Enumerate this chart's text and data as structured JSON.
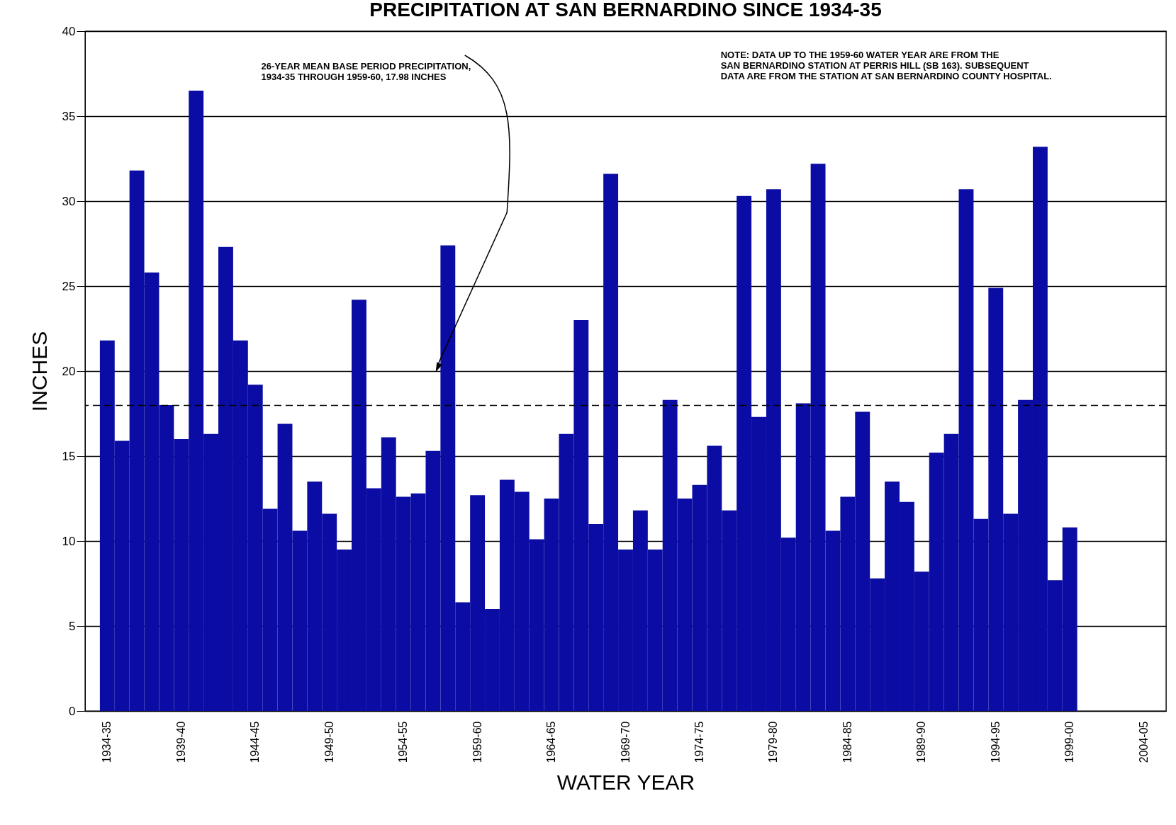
{
  "chart_data": {
    "type": "bar",
    "title": "PRECIPITATION AT SAN BERNARDINO SINCE 1934-35",
    "xlabel": "WATER YEAR",
    "ylabel": "INCHES",
    "categories": [
      "1934-35",
      null,
      null,
      null,
      null,
      "1939-40",
      null,
      null,
      null,
      null,
      "1944-45",
      null,
      null,
      null,
      null,
      "1949-50",
      null,
      null,
      null,
      null,
      "1954-55",
      null,
      null,
      null,
      null,
      "1959-60",
      null,
      null,
      null,
      null,
      "1964-65",
      null,
      null,
      null,
      null,
      "1969-70",
      null,
      null,
      null,
      null,
      "1974-75",
      null,
      null,
      null,
      null,
      "1979-80",
      null,
      null,
      null,
      null,
      "1984-85",
      null,
      null,
      null,
      null,
      "1989-90",
      null,
      null,
      null,
      null,
      "1994-95",
      null,
      null,
      null,
      null,
      "1999-00",
      null,
      null,
      null,
      null,
      "2004-05"
    ],
    "values": [
      21.8,
      15.9,
      31.8,
      25.8,
      18.0,
      16.0,
      36.5,
      16.3,
      27.3,
      21.8,
      19.2,
      11.9,
      16.9,
      10.6,
      13.5,
      11.6,
      9.5,
      24.2,
      13.1,
      16.1,
      12.6,
      12.8,
      15.3,
      27.4,
      6.4,
      12.7,
      6.0,
      13.6,
      12.9,
      10.1,
      12.5,
      16.3,
      23.0,
      11.0,
      31.6,
      9.5,
      11.8,
      9.5,
      18.3,
      12.5,
      13.3,
      15.6,
      11.8,
      30.3,
      17.3,
      30.7,
      10.2,
      18.1,
      32.2,
      10.6,
      12.6,
      17.6,
      7.8,
      13.5,
      12.3,
      8.2,
      15.2,
      16.3,
      30.7,
      11.3,
      24.9,
      11.6,
      18.3,
      33.2,
      7.7,
      10.8,
      null,
      null,
      null,
      null,
      null
    ],
    "color": "#0b0ca3",
    "ylim": [
      0,
      40
    ],
    "yticks": [
      0,
      5,
      10,
      15,
      20,
      25,
      30,
      35,
      40
    ],
    "grid": "y",
    "ref_lines": [
      {
        "axis": "y",
        "value": 17.98,
        "label": "26-YEAR MEAN BASE PERIOD PRECIPITATION,\n1934-35 THROUGH 1959-60, 17.98 INCHES",
        "line_style": "dashed",
        "color": "#000000"
      }
    ],
    "annotations": [
      "NOTE:  DATA UP TO THE 1959-60 WATER YEAR ARE FROM THE\nSAN BERNARDINO STATION AT PERRIS HILL (SB 163).  SUBSEQUENT\nDATA ARE FROM THE STATION AT SAN BERNARDINO COUNTY HOSPITAL."
    ]
  }
}
